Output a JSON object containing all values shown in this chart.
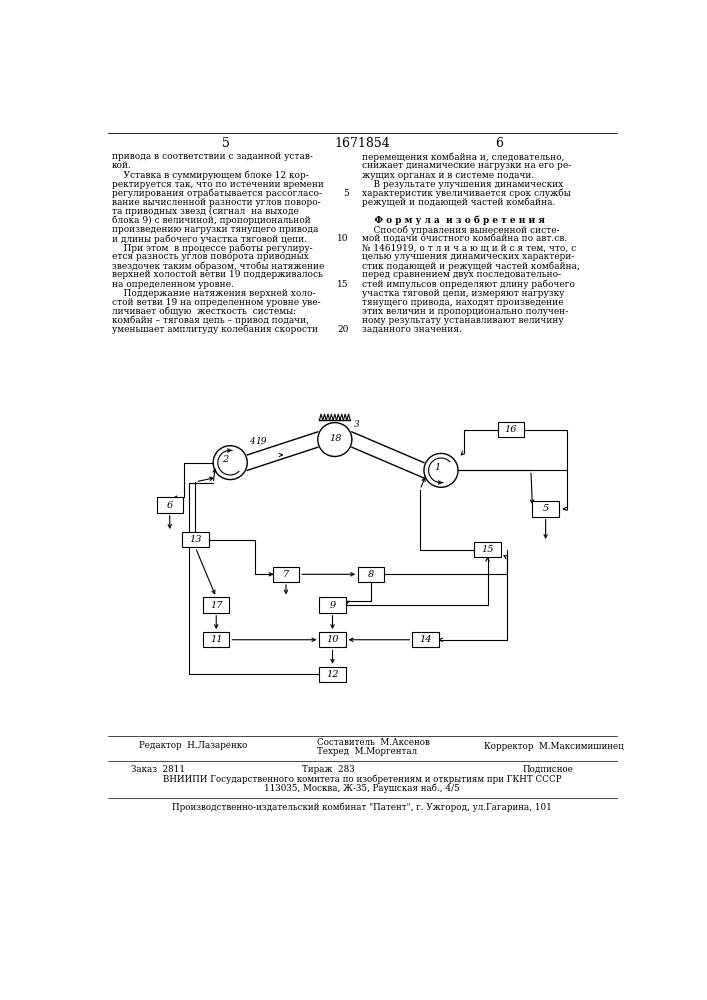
{
  "page_number_left": "5",
  "patent_number": "1671854",
  "page_number_right": "6",
  "footer_editor": "Редактор  Н.Лазаренко",
  "footer_compiler": "Составитель  М.Аксенов",
  "footer_techred": "Техред  М.Моргентал",
  "footer_corrector": "Корректор  М.Максимишинец",
  "footer_order": "Заказ  2811",
  "footer_circulation": "Тираж  283",
  "footer_subscription": "Подписное",
  "footer_vniiipi": "ВНИИПИ Государственного комитета по изобретениям и открытиям при ГКНТ СССР",
  "footer_address": "113035, Москва, Ж-35, Раушская наб., 4/5",
  "footer_factory": "Производственно-издательский комбинат \"Патент\", г. Ужгород, ул.Гагарина, 101",
  "bg_color": "#ffffff",
  "text_color": "#1a1a1a"
}
